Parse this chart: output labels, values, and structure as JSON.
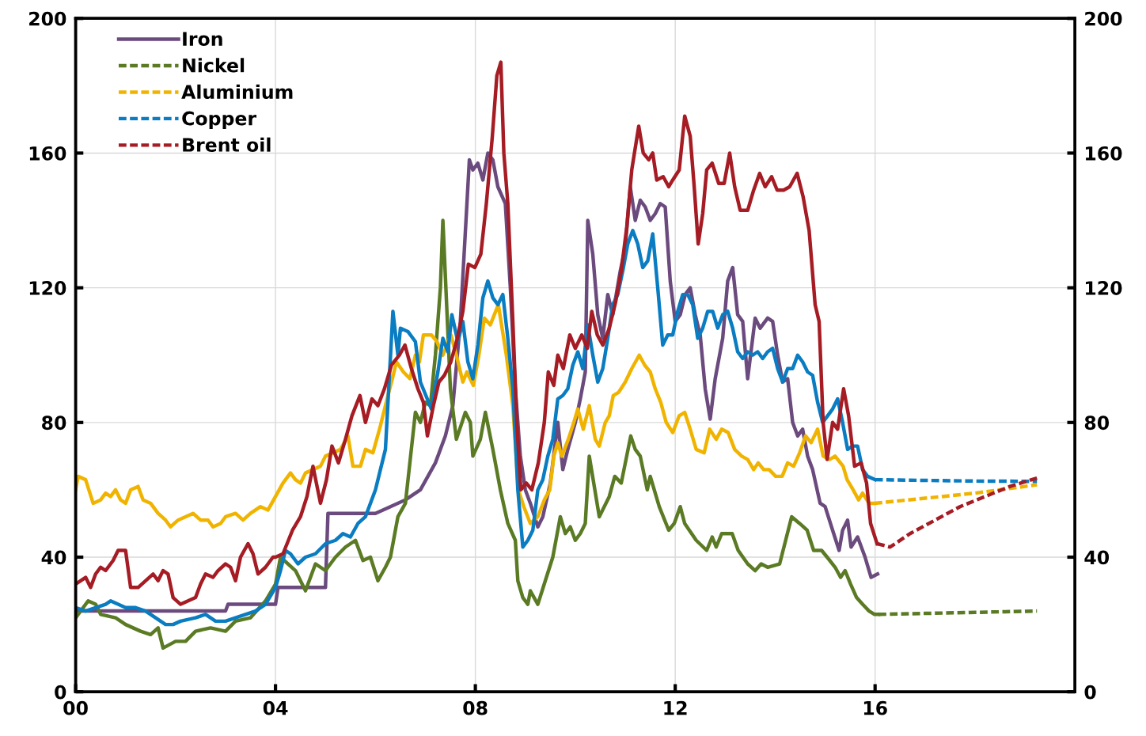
{
  "chart_data": {
    "type": "line",
    "xlim": [
      0,
      20
    ],
    "xticks": [
      {
        "value": 0,
        "label": "00"
      },
      {
        "value": 4,
        "label": "04"
      },
      {
        "value": 8,
        "label": "08"
      },
      {
        "value": 12,
        "label": "12"
      },
      {
        "value": 16,
        "label": "16"
      }
    ],
    "ylim": [
      0,
      200
    ],
    "yticks": [
      0,
      40,
      80,
      120,
      160,
      200
    ],
    "y2lim": [
      0,
      200
    ],
    "y2ticks": [
      0,
      40,
      80,
      120,
      160,
      200
    ],
    "grid": true,
    "legend": "top left",
    "marker": "none",
    "series": [
      {
        "name": "Iron",
        "color": "#6b4a7e",
        "line_style": "solid",
        "x": [
          0,
          3.0,
          3.05,
          4.0,
          4.05,
          5.0,
          5.05,
          6.0,
          6.3,
          6.6,
          6.9,
          7.2,
          7.4,
          7.55,
          7.7,
          7.88,
          7.95,
          8.05,
          8.15,
          8.25,
          8.35,
          8.45,
          8.6,
          8.7,
          8.8,
          8.9,
          9.0,
          9.1,
          9.25,
          9.35,
          9.5,
          9.65,
          9.75,
          9.85,
          10.0,
          10.1,
          10.2,
          10.25,
          10.35,
          10.45,
          10.55,
          10.65,
          10.75,
          10.9,
          11.0,
          11.1,
          11.2,
          11.3,
          11.4,
          11.5,
          11.6,
          11.7,
          11.8,
          11.9,
          12.0,
          12.1,
          12.2,
          12.3,
          12.4,
          12.5,
          12.6,
          12.7,
          12.8,
          12.95,
          13.05,
          13.15,
          13.25,
          13.35,
          13.45,
          13.6,
          13.7,
          13.85,
          13.95,
          14.05,
          14.15,
          14.25,
          14.35,
          14.45,
          14.55,
          14.65,
          14.75,
          14.9,
          15.0,
          15.15,
          15.28,
          15.35,
          15.45,
          15.52,
          15.65,
          15.8,
          15.92,
          16.05
        ],
        "values": [
          24,
          24,
          26,
          26,
          31,
          31,
          53,
          53,
          55,
          57,
          60,
          68,
          76,
          85,
          110,
          158,
          155,
          157,
          152,
          160,
          158,
          150,
          145,
          120,
          90,
          70,
          60,
          56,
          49,
          52,
          62,
          80,
          66,
          72,
          80,
          87,
          95,
          140,
          130,
          112,
          105,
          118,
          112,
          125,
          132,
          150,
          140,
          146,
          144,
          140,
          142,
          145,
          144,
          122,
          110,
          112,
          118,
          120,
          112,
          106,
          90,
          81,
          93,
          105,
          122,
          126,
          112,
          110,
          93,
          111,
          108,
          111,
          110,
          100,
          92,
          93,
          80,
          76,
          78,
          70,
          66,
          56,
          55,
          48,
          42,
          48,
          51,
          43,
          46,
          40,
          34,
          35
        ]
      },
      {
        "color": "#5a7a24",
        "line_style": "solid",
        "x": [
          0,
          0.15,
          0.25,
          0.4,
          0.5,
          0.8,
          1.0,
          1.3,
          1.5,
          1.65,
          1.75,
          2.0,
          2.2,
          2.4,
          2.7,
          3.0,
          3.2,
          3.5,
          3.8,
          4.0,
          4.1,
          4.4,
          4.6,
          4.8,
          5.0,
          5.2,
          5.4,
          5.6,
          5.75,
          5.9,
          6.05,
          6.2,
          6.3,
          6.45,
          6.6,
          6.8,
          6.9,
          7.0,
          7.1,
          7.2,
          7.3,
          7.35,
          7.5,
          7.62,
          7.8,
          7.9,
          7.95,
          8.1,
          8.2,
          8.35,
          8.5,
          8.65,
          8.8,
          8.85,
          8.95,
          9.05,
          9.1,
          9.25,
          9.4,
          9.55,
          9.7,
          9.8,
          9.9,
          10.0,
          10.1,
          10.2,
          10.28,
          10.48,
          10.68,
          10.79,
          10.92,
          11.11,
          11.2,
          11.3,
          11.44,
          11.5,
          11.68,
          11.87,
          11.98,
          12.1,
          12.19,
          12.42,
          12.63,
          12.74,
          12.82,
          12.93,
          13.14,
          13.26,
          13.45,
          13.6,
          13.72,
          13.85,
          14.09,
          14.33,
          14.49,
          14.64,
          14.77,
          14.93,
          15.04,
          15.2,
          15.31,
          15.4,
          15.51,
          15.63,
          15.75,
          15.88,
          15.99,
          16.07
        ],
        "values": [
          22,
          25,
          27,
          26,
          23,
          22,
          20,
          18,
          17,
          19,
          13,
          15,
          15,
          18,
          19,
          18,
          21,
          22,
          27,
          32,
          40,
          36,
          30,
          38,
          36,
          40,
          43,
          45,
          39,
          40,
          33,
          37,
          40,
          52,
          56,
          83,
          80,
          86,
          85,
          100,
          120,
          140,
          90,
          75,
          83,
          80,
          70,
          75,
          83,
          72,
          60,
          50,
          45,
          33,
          28,
          26,
          30,
          26,
          33,
          40,
          52,
          47,
          49,
          45,
          47,
          50,
          70,
          52,
          58,
          64,
          62,
          76,
          72,
          70,
          60,
          64,
          55,
          48,
          50,
          55,
          50,
          45,
          42,
          46,
          43,
          47,
          47,
          42,
          38,
          36,
          38,
          37,
          38,
          52,
          50,
          48,
          42,
          42,
          40,
          37,
          34,
          36,
          32,
          28,
          26,
          24,
          23,
          23
        ]
      },
      {
        "name": "Nickel",
        "color": "#5a7a24",
        "line_style": "dashed",
        "x": [
          16.07,
          17,
          18,
          19.24
        ],
        "values": [
          23,
          23.3,
          23.6,
          24
        ]
      },
      {
        "color": "#f0b400",
        "line_style": "solid",
        "x": [
          0,
          0.05,
          0.2,
          0.35,
          0.5,
          0.6,
          0.7,
          0.8,
          0.9,
          1.0,
          1.1,
          1.25,
          1.35,
          1.5,
          1.65,
          1.8,
          1.9,
          2.05,
          2.2,
          2.35,
          2.5,
          2.65,
          2.75,
          2.9,
          3.0,
          3.2,
          3.35,
          3.5,
          3.7,
          3.85,
          4.0,
          4.15,
          4.3,
          4.4,
          4.5,
          4.6,
          4.75,
          4.9,
          5.0,
          5.15,
          5.3,
          5.45,
          5.55,
          5.7,
          5.8,
          5.95,
          6.1,
          6.25,
          6.34,
          6.42,
          6.56,
          6.69,
          6.8,
          6.88,
          6.96,
          7.12,
          7.23,
          7.35,
          7.51,
          7.62,
          7.75,
          7.83,
          7.96,
          8.07,
          8.18,
          8.3,
          8.46,
          8.62,
          8.75,
          8.86,
          8.97,
          9.1,
          9.25,
          9.38,
          9.49,
          9.57,
          9.65,
          9.73,
          9.86,
          9.97,
          10.05,
          10.16,
          10.28,
          10.4,
          10.48,
          10.6,
          10.68,
          10.76,
          10.87,
          11.0,
          11.13,
          11.28,
          11.39,
          11.5,
          11.6,
          11.71,
          11.82,
          11.95,
          12.08,
          12.19,
          12.3,
          12.42,
          12.58,
          12.69,
          12.82,
          12.93,
          13.06,
          13.19,
          13.33,
          13.45,
          13.57,
          13.66,
          13.77,
          13.88,
          14.01,
          14.14,
          14.25,
          14.37,
          14.49,
          14.61,
          14.72,
          14.85,
          14.96,
          15.09,
          15.2,
          15.36,
          15.44,
          15.56,
          15.67,
          15.75,
          15.88,
          15.99
        ],
        "values": [
          60,
          64,
          63,
          56,
          57,
          59,
          58,
          60,
          57,
          56,
          60,
          61,
          57,
          56,
          53,
          51,
          49,
          51,
          52,
          53,
          51,
          51,
          49,
          50,
          52,
          53,
          51,
          53,
          55,
          54,
          58,
          62,
          65,
          63,
          62,
          65,
          66,
          67,
          70,
          71,
          72,
          76,
          67,
          67,
          72,
          71,
          79,
          88,
          93,
          98,
          95,
          93,
          100,
          98,
          106,
          106,
          104,
          100,
          106,
          100,
          92,
          95,
          91,
          100,
          111,
          109,
          115,
          100,
          85,
          60,
          55,
          50,
          52,
          57,
          60,
          70,
          74,
          70,
          75,
          80,
          84,
          78,
          85,
          75,
          73,
          80,
          82,
          88,
          89,
          92,
          96,
          100,
          97,
          95,
          90,
          86,
          80,
          77,
          82,
          83,
          78,
          72,
          71,
          78,
          75,
          78,
          77,
          72,
          70,
          69,
          66,
          68,
          66,
          66,
          64,
          64,
          68,
          67,
          71,
          76,
          74,
          78,
          70,
          69,
          70,
          67,
          63,
          60,
          57,
          59,
          56,
          56
        ]
      },
      {
        "name": "Aluminium",
        "color": "#f0b400",
        "line_style": "dashed",
        "x": [
          15.99,
          17,
          18,
          19.24
        ],
        "values": [
          56,
          57.5,
          59,
          61.5
        ]
      },
      {
        "color": "#0a7cc1",
        "line_style": "solid",
        "x": [
          0,
          0.2,
          0.4,
          0.6,
          0.7,
          0.85,
          1.0,
          1.2,
          1.4,
          1.6,
          1.8,
          1.95,
          2.1,
          2.4,
          2.6,
          2.8,
          3.0,
          3.2,
          3.4,
          3.6,
          3.8,
          4.0,
          4.1,
          4.2,
          4.3,
          4.45,
          4.6,
          4.8,
          5.0,
          5.2,
          5.35,
          5.5,
          5.65,
          5.8,
          6.0,
          6.1,
          6.2,
          6.35,
          6.45,
          6.5,
          6.65,
          6.8,
          6.9,
          7.12,
          7.25,
          7.35,
          7.45,
          7.53,
          7.65,
          7.75,
          7.85,
          7.95,
          8.05,
          8.15,
          8.25,
          8.35,
          8.45,
          8.55,
          8.65,
          8.75,
          8.85,
          8.95,
          9.05,
          9.15,
          9.25,
          9.35,
          9.45,
          9.55,
          9.65,
          9.75,
          9.85,
          9.95,
          10.05,
          10.15,
          10.25,
          10.35,
          10.45,
          10.55,
          10.65,
          10.75,
          10.85,
          10.95,
          11.05,
          11.15,
          11.25,
          11.35,
          11.45,
          11.55,
          11.65,
          11.75,
          11.85,
          11.95,
          12.05,
          12.15,
          12.25,
          12.35,
          12.45,
          12.55,
          12.65,
          12.75,
          12.85,
          12.95,
          13.05,
          13.15,
          13.25,
          13.35,
          13.45,
          13.55,
          13.65,
          13.75,
          13.85,
          13.95,
          14.05,
          14.15,
          14.25,
          14.35,
          14.45,
          14.55,
          14.65,
          14.75,
          14.85,
          14.95,
          15.05,
          15.15,
          15.25,
          15.35,
          15.45,
          15.55,
          15.65,
          15.75,
          15.85,
          16.0
        ],
        "values": [
          25,
          24,
          25,
          26,
          27,
          26,
          25,
          25,
          24,
          22,
          20,
          20,
          21,
          22,
          23,
          21,
          21,
          22,
          23,
          24,
          26,
          31,
          36,
          42,
          41,
          38,
          40,
          41,
          44,
          45,
          47,
          46,
          50,
          52,
          60,
          66,
          72,
          113,
          100,
          108,
          107,
          104,
          92,
          84,
          95,
          105,
          101,
          112,
          104,
          110,
          98,
          93,
          103,
          117,
          122,
          117,
          115,
          118,
          105,
          90,
          60,
          43,
          45,
          48,
          60,
          63,
          70,
          75,
          87,
          88,
          90,
          97,
          101,
          96,
          109,
          100,
          92,
          96,
          105,
          115,
          118,
          125,
          133,
          137,
          133,
          126,
          128,
          136,
          120,
          103,
          106,
          106,
          113,
          118,
          118,
          115,
          105,
          108,
          113,
          113,
          108,
          112,
          113,
          108,
          101,
          99,
          101,
          100,
          101,
          99,
          101,
          102,
          96,
          92,
          96,
          96,
          100,
          98,
          95,
          94,
          86,
          80,
          82,
          84,
          87,
          80,
          72,
          73,
          73,
          66,
          64,
          63
        ]
      },
      {
        "name": "Copper",
        "color": "#0a7cc1",
        "line_style": "dashed",
        "x": [
          16.0,
          17,
          18,
          19.24
        ],
        "values": [
          63,
          62.8,
          62.6,
          62.5
        ]
      },
      {
        "color": "#a51c24",
        "line_style": "solid",
        "x": [
          0,
          0.1,
          0.2,
          0.3,
          0.4,
          0.5,
          0.6,
          0.75,
          0.85,
          1.0,
          1.1,
          1.25,
          1.4,
          1.55,
          1.65,
          1.75,
          1.85,
          1.95,
          2.1,
          2.25,
          2.4,
          2.5,
          2.6,
          2.75,
          2.85,
          3.0,
          3.1,
          3.2,
          3.3,
          3.45,
          3.55,
          3.65,
          3.8,
          3.95,
          4.0,
          4.15,
          4.34,
          4.5,
          4.63,
          4.75,
          4.9,
          5.02,
          5.13,
          5.26,
          5.4,
          5.53,
          5.69,
          5.8,
          5.93,
          6.05,
          6.18,
          6.32,
          6.48,
          6.59,
          6.72,
          6.85,
          6.96,
          7.04,
          7.16,
          7.27,
          7.38,
          7.51,
          7.64,
          7.75,
          7.86,
          7.99,
          8.11,
          8.22,
          8.34,
          8.43,
          8.51,
          8.57,
          8.65,
          8.75,
          8.83,
          8.91,
          9.02,
          9.13,
          9.26,
          9.38,
          9.46,
          9.57,
          9.65,
          9.76,
          9.89,
          10.0,
          10.13,
          10.24,
          10.33,
          10.44,
          10.55,
          10.68,
          10.81,
          10.92,
          11.03,
          11.13,
          11.27,
          11.36,
          11.47,
          11.55,
          11.63,
          11.76,
          11.87,
          11.95,
          12.08,
          12.19,
          12.3,
          12.38,
          12.46,
          12.55,
          12.63,
          12.74,
          12.87,
          12.98,
          13.09,
          13.19,
          13.3,
          13.45,
          13.57,
          13.69,
          13.8,
          13.93,
          14.04,
          14.17,
          14.29,
          14.44,
          14.56,
          14.68,
          14.8,
          14.88,
          14.96,
          15.04,
          15.15,
          15.25,
          15.37,
          15.47,
          15.59,
          15.72,
          15.83,
          15.91,
          16.04
        ],
        "values": [
          32,
          33,
          34,
          31,
          35,
          37,
          36,
          39,
          42,
          42,
          31,
          31,
          33,
          35,
          33,
          36,
          35,
          28,
          26,
          27,
          28,
          32,
          35,
          34,
          36,
          38,
          37,
          33,
          40,
          44,
          41,
          35,
          37,
          40,
          40,
          41,
          48,
          52,
          58,
          67,
          56,
          63,
          73,
          68,
          75,
          82,
          88,
          80,
          87,
          85,
          90,
          97,
          100,
          103,
          96,
          90,
          86,
          76,
          85,
          92,
          94,
          98,
          105,
          113,
          127,
          126,
          130,
          145,
          165,
          183,
          187,
          160,
          145,
          110,
          80,
          60,
          62,
          60,
          68,
          80,
          95,
          91,
          100,
          96,
          106,
          102,
          106,
          102,
          113,
          106,
          103,
          108,
          116,
          125,
          138,
          155,
          168,
          160,
          158,
          160,
          152,
          153,
          150,
          152,
          155,
          171,
          165,
          150,
          133,
          142,
          155,
          157,
          151,
          151,
          160,
          150,
          143,
          143,
          149,
          154,
          150,
          153,
          149,
          149,
          150,
          154,
          147,
          137,
          115,
          110,
          80,
          69,
          80,
          78,
          90,
          82,
          67,
          68,
          62,
          50,
          44
        ]
      },
      {
        "name": "Brent oil",
        "color": "#a51c24",
        "line_style": "dashed",
        "x": [
          16.04,
          16.3,
          16.7,
          17.2,
          17.7,
          18.2,
          18.7,
          19.24
        ],
        "values": [
          44,
          43,
          47,
          51,
          55,
          58,
          61,
          63.5
        ]
      }
    ]
  }
}
